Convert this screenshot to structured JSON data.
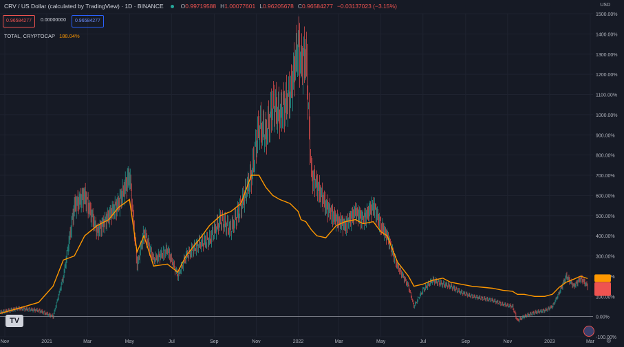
{
  "legend": {
    "title": "CRV / US Dollar (calculated by TradingView) · 1D · BINANCE",
    "ohlc": [
      {
        "label": "O",
        "value": "0.99719588"
      },
      {
        "label": "H",
        "value": "1.00077601"
      },
      {
        "label": "L",
        "value": "0.96205678"
      },
      {
        "label": "C",
        "value": "0.96584277"
      }
    ],
    "change": "−0.03137023 (−3.15%)"
  },
  "value_boxes": {
    "sell": "0.96584277",
    "spread": "0.00000000",
    "buy": "0.96584277"
  },
  "overlay": {
    "name": "TOTAL, CRYPTOCAP",
    "value": "188.04%"
  },
  "scale_unit": "USD",
  "colors": {
    "up": "#26a69a",
    "down": "#ef5350",
    "overlay": "#ff9800",
    "zero_line": "#9598a1",
    "grid": "#1f2330"
  },
  "chart_data": [
    {
      "type": "line",
      "title": "CRV / US Dollar (calculated by TradingView) · 1D · BINANCE",
      "x_ticks": [
        "Nov",
        "2021",
        "Mar",
        "May",
        "Jul",
        "Sep",
        "Nov",
        "2022",
        "Mar",
        "May",
        "Jul",
        "Sep",
        "Nov",
        "2023",
        "Mar"
      ],
      "y_ticks": [
        "1500.00%",
        "1400.00%",
        "1300.00%",
        "1200.00%",
        "1100.00%",
        "1000.00%",
        "900.00%",
        "800.00%",
        "700.00%",
        "600.00%",
        "500.00%",
        "400.00%",
        "300.00%",
        "200.00%",
        "100.00%",
        "0.00%",
        "-100.00%"
      ],
      "ylim": [
        -100,
        1500
      ],
      "yunit": "percent",
      "series": [
        {
          "name": "CRV / US Dollar",
          "x": [
            "2020-10-25",
            "2020-11-20",
            "2020-12-20",
            "2021-01-10",
            "2021-01-25",
            "2021-02-10",
            "2021-02-25",
            "2021-03-15",
            "2021-04-01",
            "2021-04-15",
            "2021-05-01",
            "2021-05-12",
            "2021-05-22",
            "2021-06-05",
            "2021-06-25",
            "2021-07-10",
            "2021-07-22",
            "2021-08-10",
            "2021-08-25",
            "2021-09-10",
            "2021-09-25",
            "2021-10-10",
            "2021-10-25",
            "2021-11-05",
            "2021-11-15",
            "2021-11-25",
            "2021-12-05",
            "2021-12-20",
            "2022-01-01",
            "2022-01-05",
            "2022-01-12",
            "2022-01-20",
            "2022-01-28",
            "2022-02-10",
            "2022-02-25",
            "2022-03-10",
            "2022-03-25",
            "2022-04-05",
            "2022-04-20",
            "2022-05-01",
            "2022-05-10",
            "2022-05-25",
            "2022-06-10",
            "2022-06-18",
            "2022-07-01",
            "2022-07-15",
            "2022-07-30",
            "2022-08-10",
            "2022-08-25",
            "2022-09-10",
            "2022-09-25",
            "2022-10-10",
            "2022-10-25",
            "2022-11-08",
            "2022-11-15",
            "2022-11-25",
            "2022-12-10",
            "2022-12-25",
            "2023-01-05",
            "2023-01-15",
            "2023-01-25",
            "2023-02-05",
            "2023-02-15",
            "2023-02-25"
          ],
          "values": [
            20,
            40,
            30,
            0,
            200,
            550,
            600,
            420,
            500,
            560,
            700,
            250,
            420,
            280,
            330,
            200,
            300,
            360,
            380,
            480,
            430,
            550,
            700,
            950,
            900,
            1050,
            1000,
            1100,
            1350,
            1250,
            1300,
            700,
            650,
            550,
            480,
            450,
            520,
            480,
            550,
            450,
            400,
            250,
            150,
            50,
            130,
            180,
            160,
            150,
            120,
            100,
            90,
            80,
            60,
            50,
            -20,
            0,
            20,
            30,
            50,
            120,
            200,
            150,
            190,
            150
          ]
        },
        {
          "name": "TOTAL, CRYPTOCAP",
          "x": [
            "2020-10-25",
            "2020-11-20",
            "2020-12-20",
            "2021-01-10",
            "2021-01-25",
            "2021-02-10",
            "2021-02-25",
            "2021-03-15",
            "2021-04-01",
            "2021-04-15",
            "2021-05-01",
            "2021-05-12",
            "2021-05-22",
            "2021-06-05",
            "2021-06-25",
            "2021-07-10",
            "2021-07-22",
            "2021-08-10",
            "2021-08-25",
            "2021-09-10",
            "2021-09-25",
            "2021-10-10",
            "2021-10-25",
            "2021-11-05",
            "2021-11-15",
            "2021-11-25",
            "2021-12-05",
            "2021-12-20",
            "2022-01-01",
            "2022-01-05",
            "2022-01-12",
            "2022-01-20",
            "2022-01-28",
            "2022-02-10",
            "2022-02-25",
            "2022-03-10",
            "2022-03-25",
            "2022-04-05",
            "2022-04-20",
            "2022-05-01",
            "2022-05-10",
            "2022-05-25",
            "2022-06-10",
            "2022-06-18",
            "2022-07-01",
            "2022-07-15",
            "2022-07-30",
            "2022-08-10",
            "2022-08-25",
            "2022-09-10",
            "2022-09-25",
            "2022-10-10",
            "2022-10-25",
            "2022-11-08",
            "2022-11-15",
            "2022-11-25",
            "2022-12-10",
            "2022-12-25",
            "2023-01-05",
            "2023-01-15",
            "2023-01-25",
            "2023-02-05",
            "2023-02-15",
            "2023-02-25"
          ],
          "values": [
            15,
            40,
            70,
            150,
            280,
            300,
            400,
            450,
            480,
            540,
            580,
            320,
            400,
            250,
            260,
            220,
            300,
            380,
            450,
            500,
            520,
            560,
            700,
            700,
            640,
            600,
            580,
            560,
            520,
            480,
            470,
            430,
            400,
            390,
            450,
            470,
            480,
            460,
            470,
            420,
            400,
            270,
            200,
            150,
            160,
            180,
            190,
            170,
            160,
            150,
            145,
            140,
            130,
            125,
            110,
            110,
            100,
            100,
            110,
            145,
            170,
            185,
            200,
            188
          ]
        }
      ]
    }
  ]
}
